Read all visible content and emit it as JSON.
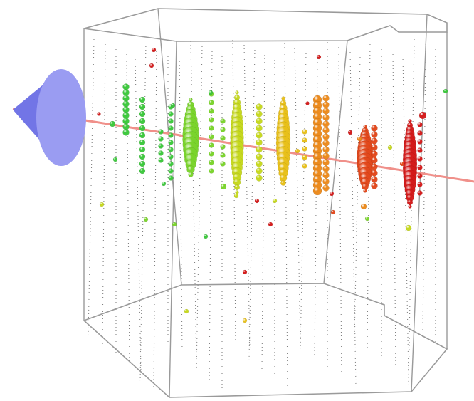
{
  "scene": {
    "background": "#ffffff",
    "frame_color": "#9a9a9a",
    "string_color": "#1a1a1a",
    "track_color": "#f0908a",
    "cone_fill": "#9a9cf2",
    "cone_side": "#7275e6",
    "hit_colors": [
      "#3cc83c",
      "#7ad42c",
      "#c6d81e",
      "#e8c01a",
      "#ec8a1c",
      "#e2481c",
      "#d41a1a"
    ]
  }
}
